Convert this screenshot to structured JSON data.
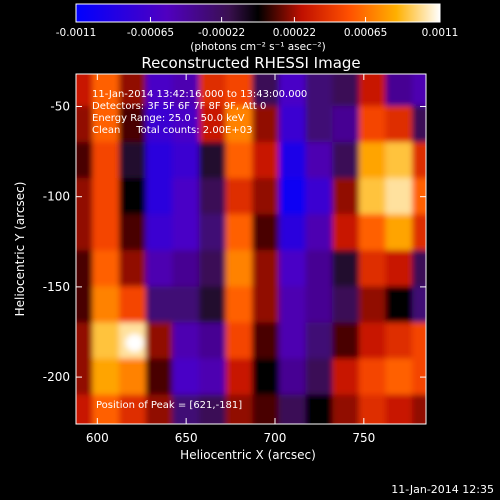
{
  "chart_data": {
    "type": "heatmap",
    "title": "Reconstructed RHESSI Image",
    "xlabel": "Heliocentric X (arcsec)",
    "ylabel": "Heliocentric Y (arcsec)",
    "xlim": [
      588,
      785
    ],
    "ylim": [
      -226,
      -32
    ],
    "x_ticks": [
      600,
      650,
      700,
      750
    ],
    "y_ticks": [
      -50,
      -100,
      -150,
      -200
    ],
    "colorbar": {
      "range": [
        -0.0011,
        0.0011
      ],
      "tick_labels": [
        "-0.0011",
        "-0.00065",
        "-0.00022",
        "0.00022",
        "0.00065",
        "0.0011"
      ],
      "unit_label": "(photons cm⁻² s⁻¹ asec⁻²)"
    },
    "annotations": [
      "11-Jan-2014 13:42:16.000 to 13:43:00.000",
      "Detectors: 3F 5F 6F 7F 8F 9F, Att 0",
      "Energy Range: 25.0 - 50.0 keV",
      "Clean     Total counts: 2.00E+03"
    ],
    "peak_label": "Position of Peak = [621,-181]",
    "peak": {
      "x": 621,
      "y": -181
    },
    "grid_x": [
      590,
      605,
      620,
      635,
      650,
      665,
      680,
      695,
      710,
      725,
      740,
      755,
      770,
      785
    ],
    "grid_y": [
      -40,
      -60,
      -80,
      -100,
      -120,
      -140,
      -160,
      -180,
      -200,
      -220
    ],
    "values": [
      [
        0.0003,
        0.0006,
        0.0002,
        -0.0006,
        -0.0005,
        0.0004,
        0.0005,
        -0.0002,
        -0.0006,
        -0.0003,
        -0.0002,
        0.0003,
        -0.0004,
        -0.0005
      ],
      [
        0.0002,
        0.0006,
        0.0001,
        -0.0007,
        -0.0006,
        0.0003,
        0.0007,
        0.0002,
        -0.0007,
        -0.0003,
        -0.0004,
        0.0005,
        0.0004,
        -0.0002
      ],
      [
        0.0001,
        0.0005,
        -0.0001,
        -0.0008,
        -0.0007,
        -0.0001,
        0.0006,
        0.0003,
        -0.0009,
        -0.0005,
        -0.0002,
        0.0008,
        0.0009,
        0.0004
      ],
      [
        0.0002,
        0.0005,
        0.0,
        -0.0008,
        -0.0006,
        -0.0002,
        0.0004,
        0.0002,
        -0.001,
        -0.0007,
        0.0002,
        0.0009,
        0.001,
        0.0006
      ],
      [
        0.0002,
        0.0005,
        0.0001,
        -0.0007,
        -0.0006,
        -0.0003,
        0.0006,
        0.0001,
        -0.0008,
        -0.0005,
        0.0003,
        0.0006,
        0.0008,
        0.0004
      ],
      [
        0.0001,
        0.0006,
        0.0002,
        -0.0005,
        -0.0004,
        -0.0002,
        0.0007,
        0.0002,
        -0.0006,
        -0.0004,
        -0.0001,
        0.0004,
        0.0003,
        -0.0002
      ],
      [
        0.0001,
        0.0007,
        0.0005,
        -0.0003,
        -0.0003,
        -0.0001,
        0.0006,
        0.0002,
        -0.0005,
        -0.0004,
        -0.0002,
        0.0002,
        0.0,
        -0.0003
      ],
      [
        0.0002,
        0.0009,
        0.001,
        0.0002,
        -0.0005,
        -0.0004,
        0.0005,
        0.0001,
        -0.0005,
        -0.0003,
        0.0001,
        0.0003,
        0.0004,
        0.0005
      ],
      [
        0.0002,
        0.0008,
        0.0007,
        0.0001,
        -0.0006,
        -0.0005,
        0.0003,
        0.0,
        -0.0004,
        -0.0002,
        0.0003,
        0.0005,
        0.0006,
        0.0005
      ],
      [
        0.0003,
        0.0006,
        0.0004,
        0.0002,
        -0.0003,
        -0.0002,
        0.0002,
        0.0001,
        -0.0002,
        0.0,
        0.0002,
        0.0004,
        0.0003,
        0.0002
      ]
    ]
  }
}
